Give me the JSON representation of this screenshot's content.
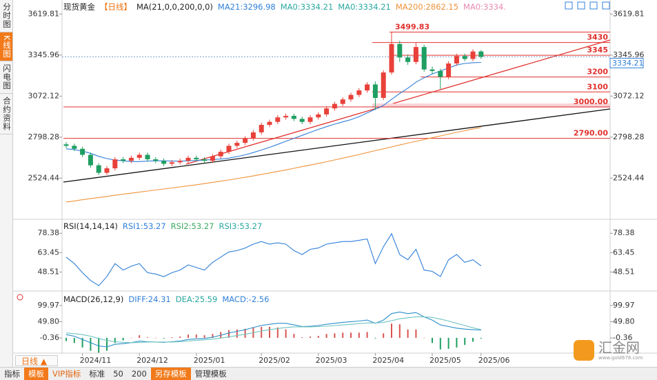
{
  "chart_data": [
    {
      "type": "candlestick",
      "title": "现货黄金",
      "period": "【日线】",
      "indicator": "MA(21,0,0,200,0,0)",
      "legend": [
        {
          "text": "MA21:3296.98",
          "color": "#2f7fd8"
        },
        {
          "text": "MA0:3334.21",
          "color": "#2aa8a0"
        },
        {
          "text": "MA0:3334.21",
          "color": "#2aa8a0"
        },
        {
          "text": "MA200:2862.15",
          "color": "#f0923a"
        },
        {
          "text": "MA0:3334.",
          "color": "#e58ab0"
        }
      ],
      "categories": [
        null,
        null,
        "2024/11",
        null,
        null,
        null,
        null,
        null,
        null,
        "2024/12",
        null,
        null,
        null,
        null,
        null,
        null,
        "2025/01",
        null,
        null,
        null,
        null,
        null,
        null,
        null,
        "2025/02",
        null,
        null,
        null,
        null,
        null,
        null,
        "2025/03",
        null,
        null,
        null,
        null,
        null,
        null,
        "2025/04",
        null,
        null,
        null,
        null,
        null,
        null,
        "2025/05",
        null,
        null,
        null,
        null,
        null,
        "2025/06"
      ],
      "open": [
        2750,
        2740,
        2720,
        2680,
        2610,
        2560,
        2590,
        2650,
        2640,
        2660,
        2680,
        2650,
        2640,
        2620,
        2630,
        2640,
        2660,
        2650,
        2640,
        2670,
        2700,
        2740,
        2760,
        2790,
        2830,
        2880,
        2900,
        2930,
        2940,
        2920,
        2900,
        2930,
        2950,
        2990,
        3020,
        3050,
        3080,
        3110,
        3150,
        3060,
        3230,
        3420,
        3330,
        3300,
        3400,
        3250,
        3240,
        3200,
        3290,
        3340,
        3320,
        3370
      ],
      "high": [
        2765,
        2755,
        2735,
        2695,
        2625,
        2605,
        2665,
        2665,
        2675,
        2695,
        2695,
        2665,
        2655,
        2645,
        2655,
        2675,
        2675,
        2665,
        2685,
        2715,
        2755,
        2775,
        2805,
        2845,
        2895,
        2915,
        2945,
        2955,
        2955,
        2935,
        2945,
        2965,
        3005,
        3035,
        3065,
        3095,
        3125,
        3165,
        3170,
        3245,
        3499.83,
        3440,
        3350,
        3430,
        3415,
        3270,
        3255,
        3305,
        3355,
        3355,
        3385,
        3380
      ],
      "low": [
        2725,
        2705,
        2665,
        2595,
        2545,
        2545,
        2575,
        2625,
        2625,
        2645,
        2635,
        2625,
        2605,
        2605,
        2615,
        2625,
        2635,
        2625,
        2625,
        2655,
        2685,
        2725,
        2745,
        2775,
        2815,
        2865,
        2885,
        2915,
        2905,
        2885,
        2885,
        2915,
        2935,
        2975,
        3005,
        3035,
        3065,
        3095,
        2980,
        3045,
        3215,
        3300,
        3280,
        3285,
        3235,
        3220,
        3120,
        3185,
        3275,
        3305,
        3305,
        3320
      ],
      "close": [
        2740,
        2720,
        2680,
        2610,
        2560,
        2590,
        2650,
        2640,
        2660,
        2680,
        2650,
        2640,
        2620,
        2630,
        2640,
        2660,
        2650,
        2640,
        2670,
        2700,
        2740,
        2760,
        2790,
        2830,
        2880,
        2900,
        2930,
        2940,
        2920,
        2900,
        2930,
        2950,
        2990,
        3020,
        3050,
        3080,
        3110,
        3150,
        3060,
        3230,
        3420,
        3330,
        3300,
        3400,
        3250,
        3240,
        3200,
        3290,
        3340,
        3320,
        3370,
        3334.21
      ],
      "up_color": "#e8413a",
      "down_color": "#1f9e62",
      "series": [
        {
          "color": "#2f7fd8",
          "values": [
            2720,
            2715,
            2705,
            2690,
            2670,
            2655,
            2645,
            2640,
            2635,
            2635,
            2638,
            2640,
            2640,
            2638,
            2638,
            2640,
            2642,
            2645,
            2648,
            2652,
            2658,
            2668,
            2680,
            2695,
            2712,
            2730,
            2750,
            2770,
            2790,
            2810,
            2830,
            2850,
            2868,
            2885,
            2900,
            2915,
            2935,
            2960,
            2985,
            3010,
            3050,
            3090,
            3125,
            3165,
            3195,
            3220,
            3240,
            3260,
            3280,
            3290,
            3295,
            3296.98
          ]
        },
        {
          "color": "#f0923a",
          "values": [
            2365,
            2372,
            2380,
            2388,
            2395,
            2402,
            2410,
            2417,
            2424,
            2431,
            2438,
            2445,
            2452,
            2459,
            2466,
            2473,
            2480,
            2488,
            2496,
            2504,
            2512,
            2521,
            2530,
            2539,
            2549,
            2559,
            2569,
            2579,
            2590,
            2601,
            2612,
            2623,
            2634,
            2646,
            2658,
            2670,
            2682,
            2695,
            2708,
            2720,
            2733,
            2746,
            2758,
            2770,
            2782,
            2794,
            2806,
            2818,
            2830,
            2841,
            2852,
            2862.15
          ]
        }
      ],
      "levels": [
        3499.83,
        3430,
        3345,
        3200,
        3100,
        {
          "value": 3000,
          "label": "3000.00"
        },
        {
          "value": 2790,
          "label": "2790.00"
        }
      ],
      "level_color": "#e0302c",
      "last_price": 3334.21,
      "ylim": [
        2300,
        3700
      ],
      "yticks": [
        3619.81,
        3345.96,
        3072.12,
        2798.28,
        2524.44
      ]
    },
    {
      "type": "line",
      "title": "RSI(14,14,14)",
      "legend": [
        {
          "text": "RSI1:53.27",
          "color": "#2f7fd8"
        },
        {
          "text": "RSI2:53.27",
          "color": "#3aa860"
        },
        {
          "text": "RSI3:53.27",
          "color": "#2aa8a0"
        }
      ],
      "series": [
        {
          "color": "#2f7fd8",
          "values": [
            60,
            55,
            48,
            42,
            38,
            45,
            55,
            50,
            53,
            55,
            48,
            47,
            45,
            48,
            50,
            54,
            52,
            50,
            56,
            60,
            64,
            65,
            67,
            70,
            72,
            70,
            71,
            70,
            65,
            62,
            66,
            67,
            70,
            71,
            72,
            72,
            73,
            74,
            55,
            68,
            78,
            62,
            58,
            66,
            50,
            49,
            45,
            58,
            62,
            56,
            58,
            53.27
          ]
        }
      ],
      "ylim": [
        36,
        87
      ],
      "yticks": [
        78.38,
        63.45,
        48.51
      ]
    },
    {
      "type": "macd",
      "title": "MACD(26,12,9)",
      "legend": [
        {
          "text": "DIFF:24.31",
          "color": "#2f7fd8"
        },
        {
          "text": "DEA:25.59",
          "color": "#2aa8a0"
        },
        {
          "text": "MACD:-2.56",
          "color": "#2f7fd8"
        }
      ],
      "series": [
        {
          "color": "#2a8fc9",
          "values": [
            10,
            5,
            -5,
            -15,
            -25,
            -28,
            -20,
            -18,
            -15,
            -10,
            -12,
            -13,
            -14,
            -12,
            -10,
            -5,
            -3,
            -2,
            2,
            8,
            15,
            20,
            25,
            32,
            38,
            42,
            45,
            45,
            40,
            35,
            36,
            38,
            42,
            45,
            48,
            50,
            52,
            55,
            45,
            55,
            75,
            80,
            75,
            78,
            65,
            55,
            40,
            35,
            30,
            27,
            25,
            24.31
          ]
        },
        {
          "color": "#6cc3c0",
          "values": [
            15,
            13,
            10,
            5,
            -2,
            -8,
            -12,
            -14,
            -15,
            -14,
            -13,
            -13,
            -13,
            -13,
            -12,
            -10,
            -8,
            -6,
            -4,
            -1,
            3,
            7,
            11,
            16,
            21,
            25,
            29,
            32,
            34,
            34,
            34,
            35,
            36,
            38,
            40,
            42,
            44,
            46,
            46,
            48,
            53,
            59,
            62,
            65,
            65,
            63,
            58,
            52,
            45,
            38,
            31,
            25.59
          ]
        }
      ],
      "histogram": [
        -10,
        -16,
        -30,
        -40,
        -46,
        -40,
        -16,
        -8,
        0,
        8,
        2,
        0,
        -2,
        2,
        4,
        10,
        10,
        8,
        12,
        18,
        24,
        26,
        28,
        32,
        34,
        34,
        32,
        26,
        12,
        2,
        4,
        6,
        12,
        14,
        16,
        16,
        16,
        18,
        -2,
        14,
        44,
        42,
        26,
        26,
        0,
        -16,
        -36,
        -34,
        -30,
        -22,
        -12,
        -2.56
      ],
      "up_color": "#d9534f",
      "down_color": "#1f9e62",
      "ylim": [
        -43,
        132
      ],
      "yticks": [
        99.97,
        49.8,
        -0.36
      ],
      "ytick_labels": [
        "99.97",
        "49.80",
        "-0.36"
      ]
    }
  ],
  "ui": {
    "side": [
      "分时图",
      "K线图",
      "闪电图",
      "合约资料"
    ],
    "period_button": "日线 ▲",
    "toolbar": [
      "指标",
      "模板",
      "VIP指标",
      "标准",
      "50",
      "200",
      "另存模板",
      "管理模板"
    ],
    "watermark": "汇金网",
    "watermark_url": "www.gold678.com"
  }
}
